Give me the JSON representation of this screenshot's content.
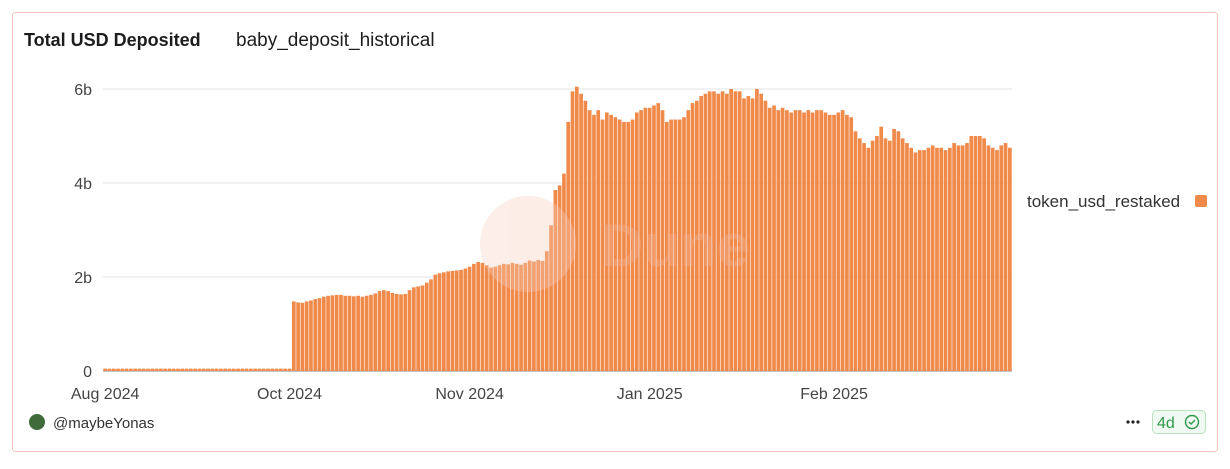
{
  "chart_data": {
    "type": "bar",
    "title": "Total USD Deposited",
    "subtitle": "baby_deposit_historical",
    "watermark": "Dune",
    "author": "@maybeYonas",
    "age": "4d",
    "categories": [
      "Aug 2024",
      null,
      null,
      null,
      null,
      null,
      null,
      null,
      null,
      null,
      null,
      null,
      null,
      null,
      null,
      null,
      null,
      null,
      null,
      null,
      null,
      null,
      null,
      null,
      null,
      null,
      null,
      null,
      null,
      null,
      null,
      null,
      null,
      null,
      null,
      null,
      null,
      null,
      null,
      null,
      null,
      null,
      null,
      "Oct 2024",
      null,
      null,
      null,
      null,
      null,
      null,
      null,
      null,
      null,
      null,
      null,
      null,
      null,
      null,
      null,
      null,
      null,
      null,
      null,
      null,
      null,
      null,
      null,
      null,
      null,
      null,
      null,
      null,
      null,
      null,
      null,
      null,
      null,
      null,
      null,
      null,
      null,
      null,
      null,
      null,
      null,
      "Nov 2024",
      null,
      null,
      null,
      null,
      null,
      null,
      null,
      null,
      null,
      null,
      null,
      null,
      null,
      null,
      null,
      null,
      null,
      null,
      null,
      null,
      null,
      null,
      null,
      null,
      null,
      null,
      null,
      null,
      null,
      null,
      null,
      null,
      null,
      null,
      null,
      null,
      null,
      null,
      null,
      null,
      null,
      "Jan 2025",
      null,
      null,
      null,
      null,
      null,
      null,
      null,
      null,
      null,
      null,
      null,
      null,
      null,
      null,
      null,
      null,
      null,
      null,
      null,
      null,
      null,
      null,
      null,
      null,
      null,
      null,
      null,
      null,
      null,
      null,
      null,
      null,
      null,
      null,
      null,
      null,
      null,
      null,
      null,
      null,
      null,
      null,
      "Feb 2025",
      null,
      null,
      null,
      null,
      null,
      null,
      null,
      null,
      null,
      null,
      null,
      null,
      null,
      null,
      null,
      null,
      null,
      null,
      null,
      null,
      null,
      null,
      null,
      null,
      null,
      null,
      null,
      null,
      null,
      null,
      null,
      null,
      null,
      null,
      null,
      null,
      null,
      null,
      null,
      null,
      null
    ],
    "series": [
      {
        "name": "token_usd_restaked",
        "color": "#f08a4b",
        "values": [
          50000000.0,
          50000000.0,
          50000000.0,
          50000000.0,
          50000000.0,
          50000000.0,
          50000000.0,
          50000000.0,
          50000000.0,
          50000000.0,
          50000000.0,
          50000000.0,
          50000000.0,
          50000000.0,
          50000000.0,
          50000000.0,
          50000000.0,
          50000000.0,
          50000000.0,
          50000000.0,
          50000000.0,
          50000000.0,
          50000000.0,
          50000000.0,
          50000000.0,
          50000000.0,
          50000000.0,
          50000000.0,
          50000000.0,
          50000000.0,
          50000000.0,
          50000000.0,
          50000000.0,
          50000000.0,
          50000000.0,
          50000000.0,
          50000000.0,
          50000000.0,
          50000000.0,
          50000000.0,
          50000000.0,
          50000000.0,
          50000000.0,
          50000000.0,
          1480000000.0,
          1460000000.0,
          1450000000.0,
          1480000000.0,
          1500000000.0,
          1530000000.0,
          1550000000.0,
          1580000000.0,
          1600000000.0,
          1610000000.0,
          1620000000.0,
          1620000000.0,
          1600000000.0,
          1600000000.0,
          1590000000.0,
          1600000000.0,
          1580000000.0,
          1600000000.0,
          1620000000.0,
          1650000000.0,
          1700000000.0,
          1720000000.0,
          1700000000.0,
          1660000000.0,
          1640000000.0,
          1630000000.0,
          1640000000.0,
          1720000000.0,
          1780000000.0,
          1800000000.0,
          1820000000.0,
          1880000000.0,
          1950000000.0,
          2050000000.0,
          2080000000.0,
          2100000000.0,
          2120000000.0,
          2130000000.0,
          2140000000.0,
          2150000000.0,
          2180000000.0,
          2220000000.0,
          2280000000.0,
          2320000000.0,
          2300000000.0,
          2250000000.0,
          2200000000.0,
          2220000000.0,
          2250000000.0,
          2280000000.0,
          2270000000.0,
          2300000000.0,
          2280000000.0,
          2260000000.0,
          2300000000.0,
          2350000000.0,
          2330000000.0,
          2360000000.0,
          2340000000.0,
          2550000000.0,
          3100000000.0,
          3850000000.0,
          3950000000.0,
          4200000000.0,
          5300000000.0,
          5950000000.0,
          6050000000.0,
          5900000000.0,
          5750000000.0,
          5550000000.0,
          5450000000.0,
          5550000000.0,
          5350000000.0,
          5500000000.0,
          5450000000.0,
          5400000000.0,
          5350000000.0,
          5300000000.0,
          5300000000.0,
          5350000000.0,
          5500000000.0,
          5550000000.0,
          5600000000.0,
          5600000000.0,
          5650000000.0,
          5700000000.0,
          5550000000.0,
          5300000000.0,
          5350000000.0,
          5350000000.0,
          5350000000.0,
          5400000000.0,
          5550000000.0,
          5700000000.0,
          5750000000.0,
          5850000000.0,
          5900000000.0,
          5950000000.0,
          5950000000.0,
          5900000000.0,
          5950000000.0,
          5900000000.0,
          6000000000.0,
          5950000000.0,
          5950000000.0,
          5800000000.0,
          5850000000.0,
          5800000000.0,
          6000000000.0,
          5900000000.0,
          5750000000.0,
          5600000000.0,
          5650000000.0,
          5550000000.0,
          5600000000.0,
          5550000000.0,
          5500000000.0,
          5550000000.0,
          5550000000.0,
          5500000000.0,
          5550000000.0,
          5500000000.0,
          5550000000.0,
          5550000000.0,
          5500000000.0,
          5450000000.0,
          5450000000.0,
          5500000000.0,
          5550000000.0,
          5450000000.0,
          5400000000.0,
          5100000000.0,
          4950000000.0,
          4850000000.0,
          4750000000.0,
          4900000000.0,
          5000000000.0,
          5200000000.0,
          4950000000.0,
          4900000000.0,
          5150000000.0,
          5100000000.0,
          4950000000.0,
          4850000000.0,
          4750000000.0,
          4650000000.0,
          4700000000.0,
          4700000000.0,
          4750000000.0,
          4800000000.0,
          4750000000.0,
          4750000000.0,
          4700000000.0,
          4750000000.0,
          4850000000.0,
          4800000000.0,
          4800000000.0,
          4850000000.0,
          5000000000.0,
          5000000000.0,
          5000000000.0,
          4950000000.0,
          4800000000.0,
          4750000000.0,
          4700000000.0,
          4800000000.0,
          4850000000.0,
          4750000000.0
        ]
      }
    ],
    "ylim": [
      0,
      6050000000.0
    ],
    "yticks": [
      0,
      {
        "value": 2000000000.0,
        "label": "2b"
      },
      {
        "value": 4000000000.0,
        "label": "4b"
      },
      {
        "value": 6000000000.0,
        "label": "6b"
      }
    ],
    "grid": true,
    "legend": "right"
  }
}
